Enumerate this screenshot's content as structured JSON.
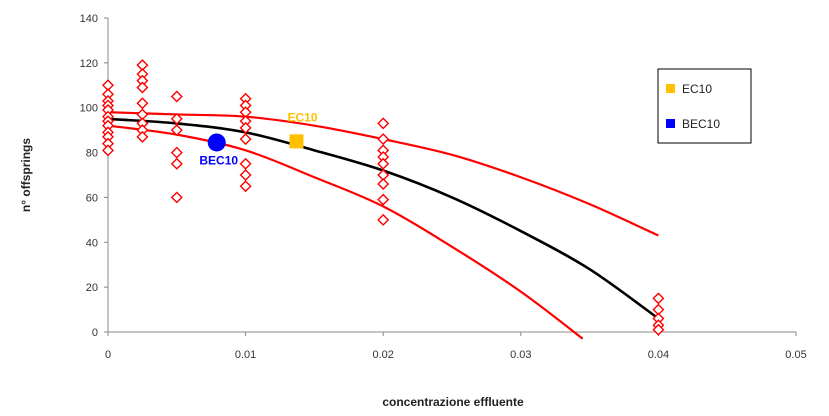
{
  "chart_data": {
    "type": "scatter",
    "title": "",
    "xlabel": "concentrazione effluente",
    "ylabel": "n° offsprings",
    "xlim": [
      0,
      0.05
    ],
    "ylim": [
      0,
      140
    ],
    "x_ticks": [
      0,
      0.01,
      0.02,
      0.03,
      0.04,
      0.05
    ],
    "x_tick_labels": [
      "0",
      "0.01",
      "0.02",
      "0.03",
      "0.04",
      "0.05"
    ],
    "y_ticks": [
      0,
      20,
      40,
      60,
      80,
      100,
      120,
      140
    ],
    "y_tick_labels": [
      "0",
      "20",
      "40",
      "60",
      "80",
      "100",
      "120",
      "140"
    ],
    "grid": false,
    "legend_position": "right",
    "colors": {
      "observed": "#ff0000",
      "fit": "#000000",
      "bounds": "#ff0000",
      "ec10": "#ffc000",
      "bec10": "#0000ff"
    },
    "observations": [
      {
        "x": 0,
        "y": 110
      },
      {
        "x": 0,
        "y": 106
      },
      {
        "x": 0,
        "y": 103
      },
      {
        "x": 0,
        "y": 101
      },
      {
        "x": 0,
        "y": 99
      },
      {
        "x": 0,
        "y": 96
      },
      {
        "x": 0,
        "y": 94
      },
      {
        "x": 0,
        "y": 92
      },
      {
        "x": 0,
        "y": 89
      },
      {
        "x": 0,
        "y": 87
      },
      {
        "x": 0,
        "y": 84
      },
      {
        "x": 0,
        "y": 81
      },
      {
        "x": 0.0025,
        "y": 119
      },
      {
        "x": 0.0025,
        "y": 115
      },
      {
        "x": 0.0025,
        "y": 112
      },
      {
        "x": 0.0025,
        "y": 109
      },
      {
        "x": 0.0025,
        "y": 102
      },
      {
        "x": 0.0025,
        "y": 97
      },
      {
        "x": 0.0025,
        "y": 93
      },
      {
        "x": 0.0025,
        "y": 90
      },
      {
        "x": 0.0025,
        "y": 87
      },
      {
        "x": 0.005,
        "y": 105
      },
      {
        "x": 0.005,
        "y": 95
      },
      {
        "x": 0.005,
        "y": 90
      },
      {
        "x": 0.005,
        "y": 80
      },
      {
        "x": 0.005,
        "y": 75
      },
      {
        "x": 0.005,
        "y": 60
      },
      {
        "x": 0.01,
        "y": 104
      },
      {
        "x": 0.01,
        "y": 101
      },
      {
        "x": 0.01,
        "y": 98
      },
      {
        "x": 0.01,
        "y": 94
      },
      {
        "x": 0.01,
        "y": 91
      },
      {
        "x": 0.01,
        "y": 86
      },
      {
        "x": 0.01,
        "y": 75
      },
      {
        "x": 0.01,
        "y": 70
      },
      {
        "x": 0.01,
        "y": 65
      },
      {
        "x": 0.02,
        "y": 93
      },
      {
        "x": 0.02,
        "y": 86
      },
      {
        "x": 0.02,
        "y": 81
      },
      {
        "x": 0.02,
        "y": 78
      },
      {
        "x": 0.02,
        "y": 75
      },
      {
        "x": 0.02,
        "y": 70
      },
      {
        "x": 0.02,
        "y": 66
      },
      {
        "x": 0.02,
        "y": 59
      },
      {
        "x": 0.02,
        "y": 50
      },
      {
        "x": 0.04,
        "y": 15
      },
      {
        "x": 0.04,
        "y": 10
      },
      {
        "x": 0.04,
        "y": 6
      },
      {
        "x": 0.04,
        "y": 3
      },
      {
        "x": 0.04,
        "y": 1
      }
    ],
    "fit": [
      {
        "x": 0,
        "y": 95
      },
      {
        "x": 0.005,
        "y": 93
      },
      {
        "x": 0.01,
        "y": 89
      },
      {
        "x": 0.015,
        "y": 81
      },
      {
        "x": 0.02,
        "y": 72
      },
      {
        "x": 0.025,
        "y": 60
      },
      {
        "x": 0.03,
        "y": 45
      },
      {
        "x": 0.035,
        "y": 28
      },
      {
        "x": 0.04,
        "y": 6
      }
    ],
    "upper_bound": [
      {
        "x": 0,
        "y": 98
      },
      {
        "x": 0.005,
        "y": 97
      },
      {
        "x": 0.01,
        "y": 96
      },
      {
        "x": 0.015,
        "y": 92
      },
      {
        "x": 0.02,
        "y": 86
      },
      {
        "x": 0.025,
        "y": 79
      },
      {
        "x": 0.03,
        "y": 69
      },
      {
        "x": 0.035,
        "y": 57
      },
      {
        "x": 0.04,
        "y": 43
      }
    ],
    "lower_bound": [
      {
        "x": 0,
        "y": 92
      },
      {
        "x": 0.005,
        "y": 88
      },
      {
        "x": 0.01,
        "y": 81
      },
      {
        "x": 0.015,
        "y": 69
      },
      {
        "x": 0.02,
        "y": 56
      },
      {
        "x": 0.025,
        "y": 38
      },
      {
        "x": 0.03,
        "y": 18
      },
      {
        "x": 0.0345,
        "y": -3
      }
    ],
    "markers": [
      {
        "label": "EC10",
        "x": 0.0137,
        "y": 85,
        "shape": "square",
        "color": "#ffc000"
      },
      {
        "label": "BEC10",
        "x": 0.0079,
        "y": 84.5,
        "shape": "circle",
        "color": "#0000ff"
      }
    ],
    "legend": [
      "EC10",
      "BEC10"
    ]
  }
}
